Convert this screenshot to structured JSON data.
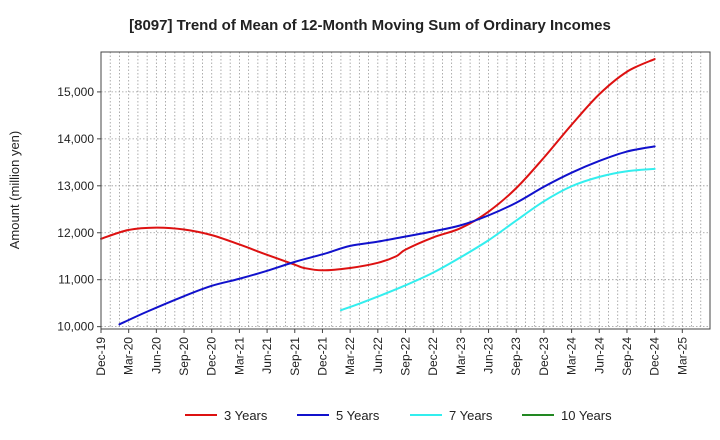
{
  "chart_data": {
    "type": "line",
    "title": "[8097]  Trend of Mean of 12-Month Moving Sum of Ordinary Incomes",
    "xlabel": "",
    "ylabel": "Amount (million yen)",
    "ylim": [
      9950,
      15850
    ],
    "yticks": [
      10000,
      11000,
      12000,
      13000,
      14000,
      15000
    ],
    "ytick_labels": [
      "10,000",
      "11,000",
      "12,000",
      "13,000",
      "14,000",
      "15,000"
    ],
    "x_range_months": [
      0,
      66
    ],
    "xticks": [
      {
        "m": 0,
        "label": "Dec-19"
      },
      {
        "m": 3,
        "label": "Mar-20"
      },
      {
        "m": 6,
        "label": "Jun-20"
      },
      {
        "m": 9,
        "label": "Sep-20"
      },
      {
        "m": 12,
        "label": "Dec-20"
      },
      {
        "m": 15,
        "label": "Mar-21"
      },
      {
        "m": 18,
        "label": "Jun-21"
      },
      {
        "m": 21,
        "label": "Sep-21"
      },
      {
        "m": 24,
        "label": "Dec-21"
      },
      {
        "m": 27,
        "label": "Mar-22"
      },
      {
        "m": 30,
        "label": "Jun-22"
      },
      {
        "m": 33,
        "label": "Sep-22"
      },
      {
        "m": 36,
        "label": "Dec-22"
      },
      {
        "m": 39,
        "label": "Mar-23"
      },
      {
        "m": 42,
        "label": "Jun-23"
      },
      {
        "m": 45,
        "label": "Sep-23"
      },
      {
        "m": 48,
        "label": "Dec-23"
      },
      {
        "m": 51,
        "label": "Mar-24"
      },
      {
        "m": 54,
        "label": "Jun-24"
      },
      {
        "m": 57,
        "label": "Sep-24"
      },
      {
        "m": 60,
        "label": "Dec-24"
      },
      {
        "m": 63,
        "label": "Mar-25"
      }
    ],
    "grid": true,
    "legend_position": "bottom",
    "series": [
      {
        "name": "3 Years",
        "color": "#dd1111",
        "points": [
          [
            0,
            11870
          ],
          [
            3,
            12060
          ],
          [
            6,
            12110
          ],
          [
            9,
            12070
          ],
          [
            12,
            11950
          ],
          [
            15,
            11750
          ],
          [
            18,
            11530
          ],
          [
            21,
            11320
          ],
          [
            22,
            11250
          ],
          [
            24,
            11200
          ],
          [
            27,
            11250
          ],
          [
            30,
            11360
          ],
          [
            32,
            11500
          ],
          [
            33,
            11640
          ],
          [
            36,
            11900
          ],
          [
            39,
            12100
          ],
          [
            42,
            12450
          ],
          [
            45,
            12950
          ],
          [
            48,
            13600
          ],
          [
            51,
            14300
          ],
          [
            54,
            14950
          ],
          [
            57,
            15430
          ],
          [
            60,
            15700
          ]
        ]
      },
      {
        "name": "5 Years",
        "color": "#1111cc",
        "points": [
          [
            2,
            10050
          ],
          [
            5,
            10320
          ],
          [
            9,
            10650
          ],
          [
            12,
            10870
          ],
          [
            15,
            11020
          ],
          [
            18,
            11190
          ],
          [
            21,
            11380
          ],
          [
            24,
            11540
          ],
          [
            27,
            11720
          ],
          [
            30,
            11810
          ],
          [
            33,
            11920
          ],
          [
            36,
            12030
          ],
          [
            39,
            12160
          ],
          [
            42,
            12370
          ],
          [
            45,
            12640
          ],
          [
            48,
            12980
          ],
          [
            51,
            13280
          ],
          [
            54,
            13530
          ],
          [
            57,
            13730
          ],
          [
            60,
            13840
          ]
        ]
      },
      {
        "name": "7 Years",
        "color": "#33eeee",
        "points": [
          [
            26,
            10350
          ],
          [
            28,
            10490
          ],
          [
            30,
            10640
          ],
          [
            33,
            10880
          ],
          [
            36,
            11150
          ],
          [
            39,
            11480
          ],
          [
            42,
            11840
          ],
          [
            45,
            12260
          ],
          [
            48,
            12670
          ],
          [
            51,
            12990
          ],
          [
            54,
            13190
          ],
          [
            57,
            13310
          ],
          [
            60,
            13360
          ]
        ]
      },
      {
        "name": "10 Years",
        "color": "#228822",
        "points": []
      }
    ]
  }
}
